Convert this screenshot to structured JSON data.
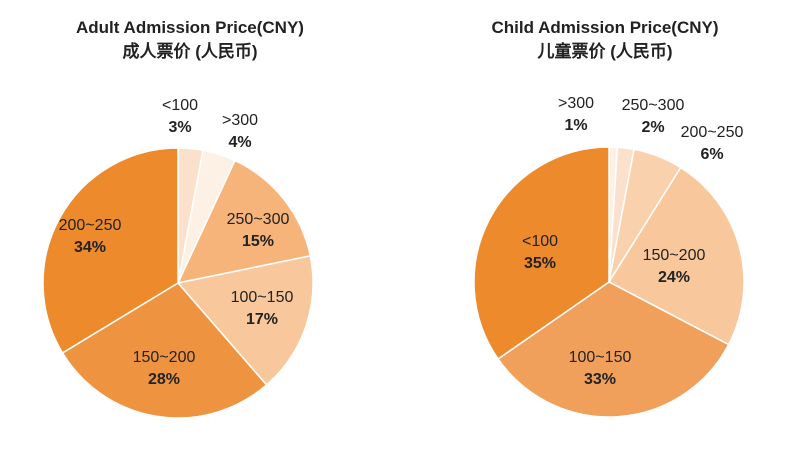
{
  "chart_data": [
    {
      "type": "pie",
      "title": "Adult Admission Price(CNY)",
      "subtitle": "成人票价 (人民币)",
      "categories": [
        "<100",
        ">300",
        "250~300",
        "100~150",
        "150~200",
        "200~250"
      ],
      "values": [
        3,
        4,
        15,
        17,
        28,
        34
      ],
      "value_labels": [
        "3%",
        "4%",
        "15%",
        "17%",
        "28%",
        "34%"
      ],
      "colors": [
        "#fbe0cc",
        "#fdf0e4",
        "#f6b47a",
        "#f8c89c",
        "#ee9440",
        "#ec8a2c"
      ]
    },
    {
      "type": "pie",
      "title": "Child Admission Price(CNY)",
      "subtitle": "儿童票价 (人民币)",
      "categories": [
        ">300",
        "250~300",
        "200~250",
        "150~200",
        "100~150",
        "<100"
      ],
      "values": [
        1,
        2,
        6,
        24,
        33,
        35
      ],
      "value_labels": [
        "1%",
        "2%",
        "6%",
        "24%",
        "33%",
        "35%"
      ],
      "colors": [
        "#fdf0e4",
        "#fbe0cc",
        "#f9d2ad",
        "#f8c89c",
        "#f0a05a",
        "#ec8a2c"
      ]
    }
  ]
}
